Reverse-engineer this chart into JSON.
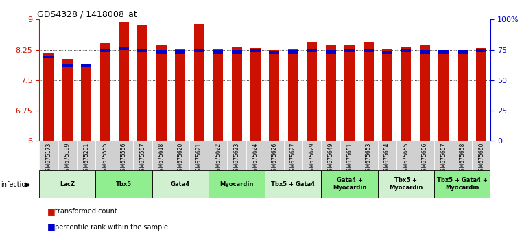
{
  "title": "GDS4328 / 1418008_at",
  "samples": [
    "GSM675173",
    "GSM675199",
    "GSM675201",
    "GSM675555",
    "GSM675556",
    "GSM675557",
    "GSM675618",
    "GSM675620",
    "GSM675621",
    "GSM675622",
    "GSM675623",
    "GSM675624",
    "GSM675626",
    "GSM675627",
    "GSM675629",
    "GSM675649",
    "GSM675651",
    "GSM675653",
    "GSM675654",
    "GSM675655",
    "GSM675656",
    "GSM675657",
    "GSM675658",
    "GSM675660"
  ],
  "red_values": [
    8.18,
    8.02,
    7.83,
    8.43,
    8.93,
    8.87,
    8.38,
    8.28,
    8.88,
    8.28,
    8.32,
    8.3,
    8.25,
    8.28,
    8.45,
    8.38,
    8.38,
    8.45,
    8.28,
    8.32,
    8.38,
    8.2,
    8.18,
    8.3
  ],
  "blue_values": [
    8.07,
    7.87,
    7.87,
    8.22,
    8.28,
    8.22,
    8.2,
    8.2,
    8.22,
    8.2,
    8.2,
    8.22,
    8.18,
    8.2,
    8.22,
    8.2,
    8.22,
    8.22,
    8.18,
    8.22,
    8.2,
    8.2,
    8.2,
    8.22
  ],
  "groups": [
    {
      "label": "LacZ",
      "start": 0,
      "end": 3,
      "color": "#d0f0d0"
    },
    {
      "label": "Tbx5",
      "start": 3,
      "end": 6,
      "color": "#90ee90"
    },
    {
      "label": "Gata4",
      "start": 6,
      "end": 9,
      "color": "#d0f0d0"
    },
    {
      "label": "Myocardin",
      "start": 9,
      "end": 12,
      "color": "#90ee90"
    },
    {
      "label": "Tbx5 + Gata4",
      "start": 12,
      "end": 15,
      "color": "#d0f0d0"
    },
    {
      "label": "Gata4 +\nMyocardin",
      "start": 15,
      "end": 18,
      "color": "#90ee90"
    },
    {
      "label": "Tbx5 +\nMyocardin",
      "start": 18,
      "end": 21,
      "color": "#d0f0d0"
    },
    {
      "label": "Tbx5 + Gata4 +\nMyocardin",
      "start": 21,
      "end": 24,
      "color": "#90ee90"
    }
  ],
  "ylim_left": [
    6.0,
    9.0
  ],
  "ylim_right": [
    0,
    100
  ],
  "yticks_left": [
    6.0,
    6.75,
    7.5,
    8.25,
    9.0
  ],
  "yticks_right": [
    0,
    25,
    50,
    75,
    100
  ],
  "ytick_labels_right": [
    "0",
    "25",
    "50",
    "75",
    "100%"
  ],
  "bar_color": "#cc1100",
  "dot_color": "#0000cc",
  "bar_width": 0.55,
  "left_axis_color": "#cc1100",
  "right_axis_color": "#0000cc",
  "background_color": "#ffffff",
  "sample_box_color": "#d0d0d0"
}
